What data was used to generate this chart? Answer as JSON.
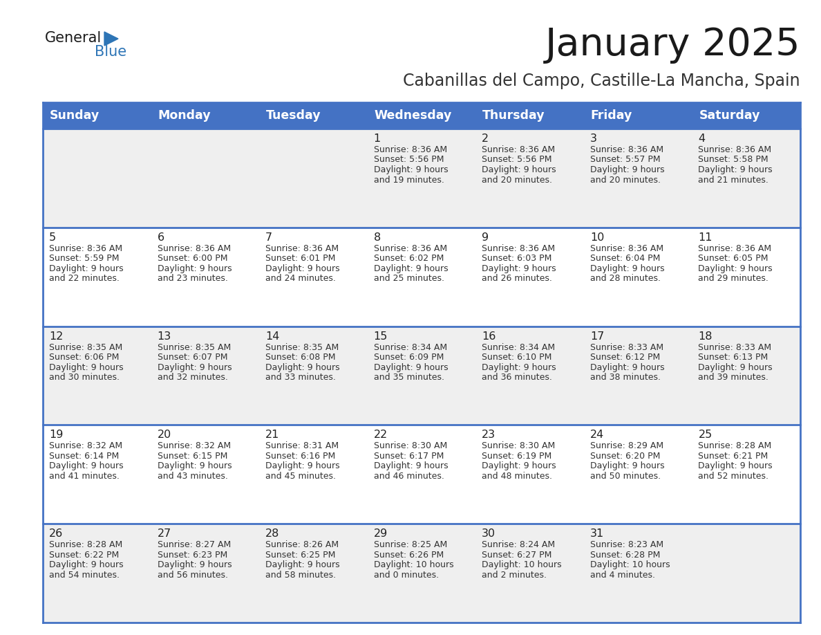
{
  "title": "January 2025",
  "subtitle": "Cabanillas del Campo, Castille-La Mancha, Spain",
  "days_of_week": [
    "Sunday",
    "Monday",
    "Tuesday",
    "Wednesday",
    "Thursday",
    "Friday",
    "Saturday"
  ],
  "header_bg_color": "#4472C4",
  "header_text_color": "#FFFFFF",
  "row_bg_colors": [
    "#EFEFEF",
    "#FFFFFF",
    "#EFEFEF",
    "#FFFFFF",
    "#EFEFEF"
  ],
  "cell_border_color": "#4472C4",
  "title_color": "#1a1a1a",
  "subtitle_color": "#333333",
  "day_number_color": "#222222",
  "cell_text_color": "#333333",
  "calendar": [
    [
      null,
      null,
      null,
      {
        "day": 1,
        "sunrise": "8:36 AM",
        "sunset": "5:56 PM",
        "daylight": "9 hours and 19 minutes"
      },
      {
        "day": 2,
        "sunrise": "8:36 AM",
        "sunset": "5:56 PM",
        "daylight": "9 hours and 20 minutes"
      },
      {
        "day": 3,
        "sunrise": "8:36 AM",
        "sunset": "5:57 PM",
        "daylight": "9 hours and 20 minutes"
      },
      {
        "day": 4,
        "sunrise": "8:36 AM",
        "sunset": "5:58 PM",
        "daylight": "9 hours and 21 minutes"
      }
    ],
    [
      {
        "day": 5,
        "sunrise": "8:36 AM",
        "sunset": "5:59 PM",
        "daylight": "9 hours and 22 minutes"
      },
      {
        "day": 6,
        "sunrise": "8:36 AM",
        "sunset": "6:00 PM",
        "daylight": "9 hours and 23 minutes"
      },
      {
        "day": 7,
        "sunrise": "8:36 AM",
        "sunset": "6:01 PM",
        "daylight": "9 hours and 24 minutes"
      },
      {
        "day": 8,
        "sunrise": "8:36 AM",
        "sunset": "6:02 PM",
        "daylight": "9 hours and 25 minutes"
      },
      {
        "day": 9,
        "sunrise": "8:36 AM",
        "sunset": "6:03 PM",
        "daylight": "9 hours and 26 minutes"
      },
      {
        "day": 10,
        "sunrise": "8:36 AM",
        "sunset": "6:04 PM",
        "daylight": "9 hours and 28 minutes"
      },
      {
        "day": 11,
        "sunrise": "8:36 AM",
        "sunset": "6:05 PM",
        "daylight": "9 hours and 29 minutes"
      }
    ],
    [
      {
        "day": 12,
        "sunrise": "8:35 AM",
        "sunset": "6:06 PM",
        "daylight": "9 hours and 30 minutes"
      },
      {
        "day": 13,
        "sunrise": "8:35 AM",
        "sunset": "6:07 PM",
        "daylight": "9 hours and 32 minutes"
      },
      {
        "day": 14,
        "sunrise": "8:35 AM",
        "sunset": "6:08 PM",
        "daylight": "9 hours and 33 minutes"
      },
      {
        "day": 15,
        "sunrise": "8:34 AM",
        "sunset": "6:09 PM",
        "daylight": "9 hours and 35 minutes"
      },
      {
        "day": 16,
        "sunrise": "8:34 AM",
        "sunset": "6:10 PM",
        "daylight": "9 hours and 36 minutes"
      },
      {
        "day": 17,
        "sunrise": "8:33 AM",
        "sunset": "6:12 PM",
        "daylight": "9 hours and 38 minutes"
      },
      {
        "day": 18,
        "sunrise": "8:33 AM",
        "sunset": "6:13 PM",
        "daylight": "9 hours and 39 minutes"
      }
    ],
    [
      {
        "day": 19,
        "sunrise": "8:32 AM",
        "sunset": "6:14 PM",
        "daylight": "9 hours and 41 minutes"
      },
      {
        "day": 20,
        "sunrise": "8:32 AM",
        "sunset": "6:15 PM",
        "daylight": "9 hours and 43 minutes"
      },
      {
        "day": 21,
        "sunrise": "8:31 AM",
        "sunset": "6:16 PM",
        "daylight": "9 hours and 45 minutes"
      },
      {
        "day": 22,
        "sunrise": "8:30 AM",
        "sunset": "6:17 PM",
        "daylight": "9 hours and 46 minutes"
      },
      {
        "day": 23,
        "sunrise": "8:30 AM",
        "sunset": "6:19 PM",
        "daylight": "9 hours and 48 minutes"
      },
      {
        "day": 24,
        "sunrise": "8:29 AM",
        "sunset": "6:20 PM",
        "daylight": "9 hours and 50 minutes"
      },
      {
        "day": 25,
        "sunrise": "8:28 AM",
        "sunset": "6:21 PM",
        "daylight": "9 hours and 52 minutes"
      }
    ],
    [
      {
        "day": 26,
        "sunrise": "8:28 AM",
        "sunset": "6:22 PM",
        "daylight": "9 hours and 54 minutes"
      },
      {
        "day": 27,
        "sunrise": "8:27 AM",
        "sunset": "6:23 PM",
        "daylight": "9 hours and 56 minutes"
      },
      {
        "day": 28,
        "sunrise": "8:26 AM",
        "sunset": "6:25 PM",
        "daylight": "9 hours and 58 minutes"
      },
      {
        "day": 29,
        "sunrise": "8:25 AM",
        "sunset": "6:26 PM",
        "daylight": "10 hours and 0 minutes"
      },
      {
        "day": 30,
        "sunrise": "8:24 AM",
        "sunset": "6:27 PM",
        "daylight": "10 hours and 2 minutes"
      },
      {
        "day": 31,
        "sunrise": "8:23 AM",
        "sunset": "6:28 PM",
        "daylight": "10 hours and 4 minutes"
      },
      null
    ]
  ],
  "logo_general_color": "#1a1a1a",
  "logo_blue_color": "#2E75B6",
  "figsize": [
    11.88,
    9.18
  ],
  "dpi": 100
}
